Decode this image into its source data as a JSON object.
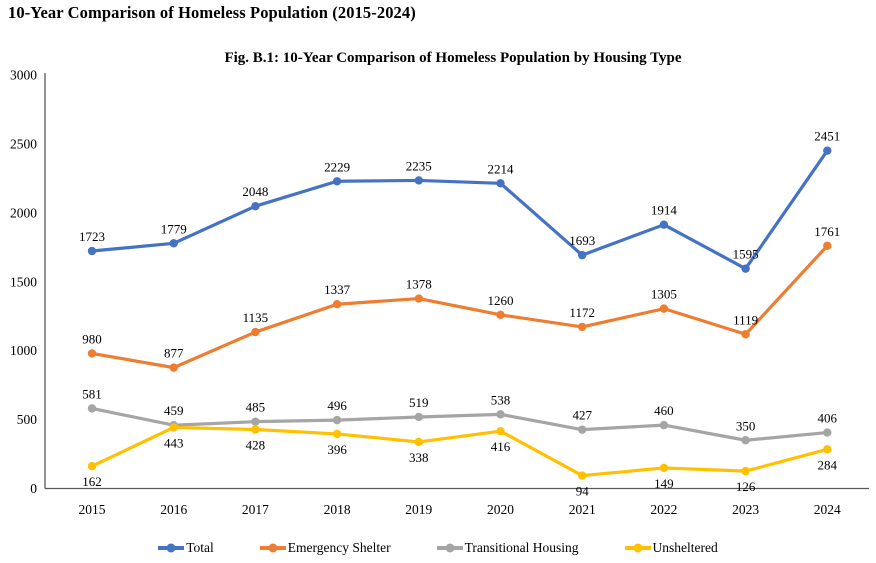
{
  "page": {
    "title": "10-Year Comparison of Homeless Population (2015-2024)"
  },
  "chart_data": {
    "type": "line",
    "title": "Fig. B.1: 10-Year Comparison of Homeless Population by Housing Type",
    "x": [
      "2015",
      "2016",
      "2017",
      "2018",
      "2019",
      "2020",
      "2021",
      "2022",
      "2023",
      "2024"
    ],
    "series": [
      {
        "name": "Total",
        "color": "#4472C4",
        "label_position": "above",
        "values": [
          1723,
          1779,
          2048,
          2229,
          2235,
          2214,
          1693,
          1914,
          1595,
          2451
        ]
      },
      {
        "name": "Emergency Shelter",
        "color": "#ED7D31",
        "label_position": "above",
        "values": [
          980,
          877,
          1135,
          1337,
          1378,
          1260,
          1172,
          1305,
          1119,
          1761
        ]
      },
      {
        "name": "Transitional Housing",
        "color": "#A5A5A5",
        "label_position": "above",
        "values": [
          581,
          459,
          485,
          496,
          519,
          538,
          427,
          460,
          350,
          406
        ]
      },
      {
        "name": "Unsheltered",
        "color": "#FFC000",
        "label_position": "below",
        "values": [
          162,
          443,
          428,
          396,
          338,
          416,
          94,
          149,
          126,
          284
        ]
      }
    ],
    "ylim": [
      0,
      3000
    ],
    "ytick_step": 500,
    "ytick_labels": [
      "0",
      "500",
      "1000",
      "1500",
      "2000",
      "2500",
      "3000"
    ],
    "grid": false,
    "data_labels": true,
    "legend_position": "bottom",
    "axis_color": "#595959",
    "text_color": "#000000"
  }
}
